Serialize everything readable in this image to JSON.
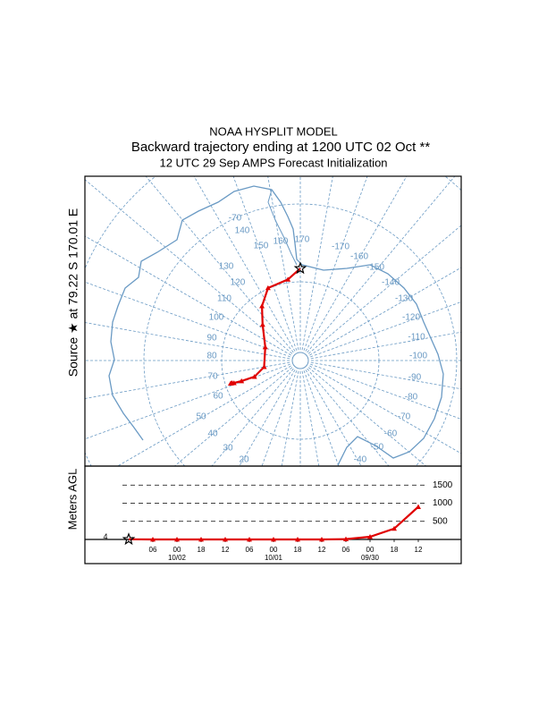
{
  "header": {
    "title": "NOAA HYSPLIT MODEL",
    "subtitle": "Backward trajectory ending at 1200 UTC 02 Oct **",
    "info": "12 UTC 29 Sep    AMPS  Forecast Initialization"
  },
  "source_label": "Source  ★  at   79.22 S  170.01 E",
  "chart_data": [
    {
      "type": "trajectory-map",
      "color": "#e00000",
      "lat": [
        -79.22,
        -80.4,
        -80.7,
        -82.2,
        -83.9,
        -85.6,
        -85.7,
        -84.3,
        -82.7,
        -81.8,
        -81.6,
        -81.5,
        -81.4
      ],
      "lon": [
        170.01,
        161.3,
        146,
        134.8,
        123.6,
        101,
        70.1,
        60.6,
        60.8,
        61.3,
        61.8,
        61.8,
        61.8
      ],
      "meridian_labels": [
        "-70",
        "140",
        "150",
        "160",
        "170",
        "-170",
        "-160",
        "-150",
        "-140",
        "130",
        "120",
        "110",
        "100",
        "90",
        "80",
        "70",
        "60",
        "50",
        "40",
        "30",
        "20",
        "-130",
        "-120",
        "-110",
        "-100",
        "-90",
        "-80",
        "-70",
        "-60",
        "-50",
        "-40"
      ]
    },
    {
      "type": "line",
      "y_label": "Meters AGL",
      "color": "#e00000",
      "categories": [
        null,
        "06",
        "00",
        "18",
        "12",
        "06",
        "00",
        "18",
        "12",
        "06",
        "00",
        "18",
        "12"
      ],
      "dates": [
        null,
        null,
        "10/02",
        null,
        null,
        null,
        "10/01",
        null,
        null,
        null,
        "09/30",
        null,
        null
      ],
      "values": [
        4,
        0,
        0,
        0,
        0,
        0,
        0,
        0,
        0,
        10,
        75,
        300,
        900
      ],
      "value_labels": [
        "4",
        null,
        null,
        null,
        null,
        null,
        null,
        null,
        null,
        null,
        null,
        null,
        null
      ],
      "ylim": [
        0,
        2000
      ],
      "yticks": [
        500,
        1000,
        1500
      ],
      "grid": true
    }
  ]
}
